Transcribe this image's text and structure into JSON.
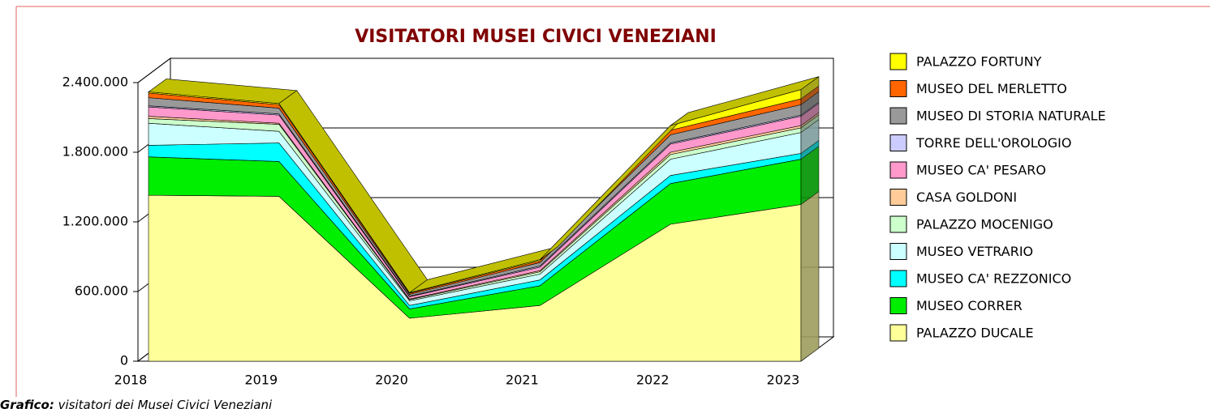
{
  "chart_data": {
    "type": "area",
    "stacked": true,
    "title": "VISITATORI MUSEI CIVICI VENEZIANI",
    "categories": [
      "2018",
      "2019",
      "2020",
      "2021",
      "2022",
      "2023"
    ],
    "ylim": [
      0,
      2400000
    ],
    "yticks": [
      {
        "value": 0,
        "label": "0"
      },
      {
        "value": 600000,
        "label": "600.000"
      },
      {
        "value": 1200000,
        "label": "1.200.000"
      },
      {
        "value": 1800000,
        "label": "1.800.000"
      },
      {
        "value": 2400000,
        "label": "2.400.000"
      }
    ],
    "grid": true,
    "legend": "right",
    "series": [
      {
        "name": "PALAZZO DUCALE",
        "color": "#ffff99",
        "values": [
          1430000,
          1420000,
          370000,
          480000,
          1180000,
          1350000
        ]
      },
      {
        "name": "MUSEO CORRER",
        "color": "#00ee00",
        "values": [
          330000,
          300000,
          80000,
          170000,
          350000,
          390000
        ]
      },
      {
        "name": "MUSEO CA' REZZONICO",
        "color": "#00ffff",
        "values": [
          100000,
          160000,
          30000,
          50000,
          70000,
          50000
        ]
      },
      {
        "name": "MUSEO VETRARIO",
        "color": "#ccffff",
        "values": [
          190000,
          100000,
          40000,
          50000,
          140000,
          180000
        ]
      },
      {
        "name": "PALAZZO MOCENIGO",
        "color": "#ccffcc",
        "values": [
          40000,
          60000,
          10000,
          20000,
          40000,
          40000
        ]
      },
      {
        "name": "CASA GOLDONI",
        "color": "#ffcc99",
        "values": [
          20000,
          10000,
          5000,
          10000,
          20000,
          20000
        ]
      },
      {
        "name": "MUSEO CA' PESARO",
        "color": "#ff99cc",
        "values": [
          80000,
          70000,
          20000,
          30000,
          70000,
          80000
        ]
      },
      {
        "name": "TORRE DELL'OROLOGIO",
        "color": "#ccccff",
        "values": [
          10000,
          10000,
          5000,
          10000,
          10000,
          10000
        ]
      },
      {
        "name": "MUSEO DI STORIA NATURALE",
        "color": "#999999",
        "values": [
          70000,
          50000,
          15000,
          30000,
          70000,
          90000
        ]
      },
      {
        "name": "MUSEO DEL MERLETTO",
        "color": "#ff6600",
        "values": [
          40000,
          30000,
          10000,
          15000,
          40000,
          50000
        ]
      },
      {
        "name": "PALAZZO FORTUNY",
        "color": "#ffff00",
        "values": [
          10000,
          10000,
          5000,
          10000,
          40000,
          80000
        ]
      }
    ]
  },
  "footer": {
    "label": "Grafico:",
    "text": "visitatori dei Musei Civici Veneziani"
  }
}
